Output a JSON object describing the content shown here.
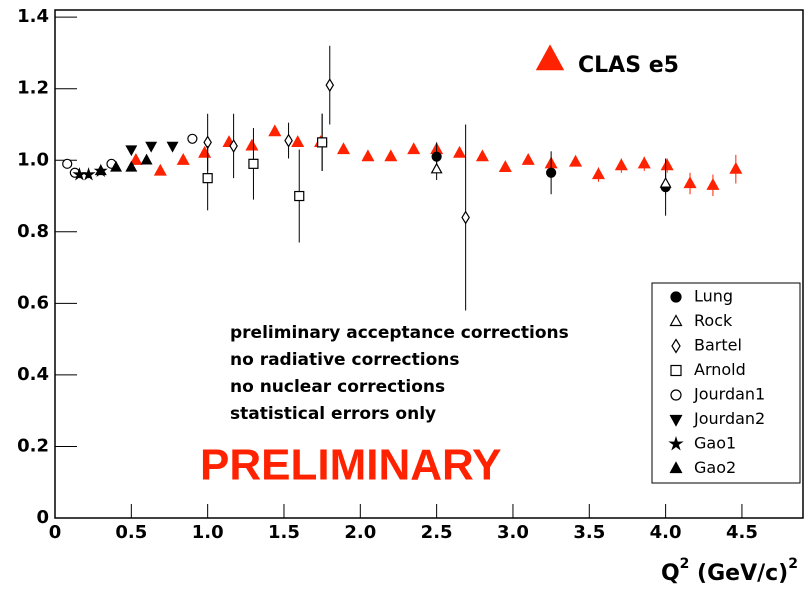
{
  "chart_data": {
    "type": "scatter",
    "xlim": [
      0,
      4.9
    ],
    "ylim": [
      0,
      1.42
    ],
    "xticks": [
      0,
      0.5,
      {
        "value": 1,
        "label": "1.0"
      },
      1.5,
      {
        "value": 2,
        "label": "2.0"
      },
      2.5,
      {
        "value": 3,
        "label": "3.0"
      },
      3.5,
      {
        "value": 4,
        "label": "4.0"
      },
      4.5
    ],
    "yticks": [
      0,
      0.2,
      0.4,
      0.6,
      0.8,
      {
        "value": 1,
        "label": "1.0"
      },
      1.2,
      1.4
    ],
    "x_label": [
      "Q",
      "2",
      " (GeV/c)",
      "2"
    ],
    "notes": [
      "preliminary acceptance corrections",
      "no radiative corrections",
      "no nuclear corrections",
      "statistical errors only"
    ],
    "stamp": "PRELIMINARY",
    "series": [
      {
        "name": "CLAS e5",
        "marker": "triangle-up-filled",
        "color": "#ff2200",
        "x": [
          0.53,
          0.69,
          0.84,
          0.98,
          1.14,
          1.29,
          1.44,
          1.59,
          1.74,
          1.89,
          2.05,
          2.2,
          2.35,
          2.5,
          2.65,
          2.8,
          2.95,
          3.1,
          3.25,
          3.41,
          3.56,
          3.71,
          3.86,
          4.01,
          4.16,
          4.31,
          4.46
        ],
        "values": [
          1.0,
          0.97,
          1.0,
          1.02,
          1.05,
          1.04,
          1.08,
          1.05,
          1.05,
          1.03,
          1.01,
          1.01,
          1.03,
          1.03,
          1.02,
          1.01,
          0.98,
          1.0,
          0.99,
          0.995,
          0.96,
          0.985,
          0.99,
          0.985,
          0.935,
          0.93,
          0.975
        ],
        "errors": [
          0.01,
          0.01,
          0.01,
          0.01,
          0.01,
          0.01,
          0.01,
          0.01,
          0.01,
          0.01,
          0.01,
          0.01,
          0.01,
          0.01,
          0.01,
          0.01,
          0.01,
          0.01,
          0.02,
          0.01,
          0.02,
          0.02,
          0.02,
          0.02,
          0.03,
          0.03,
          0.04
        ]
      },
      {
        "name": "Lung",
        "marker": "circle-filled",
        "color": "#000000",
        "x": [
          1.75,
          2.5,
          3.25,
          4.0
        ],
        "values": [
          1.05,
          1.01,
          0.965,
          0.925
        ],
        "errors": [
          0.08,
          0.04,
          0.06,
          0.08
        ]
      },
      {
        "name": "Rock",
        "marker": "triangle-up-open",
        "color": "#000000",
        "x": [
          2.5,
          4.0
        ],
        "values": [
          0.975,
          0.935
        ],
        "errors": [
          0.03,
          0.03
        ]
      },
      {
        "name": "Bartel",
        "marker": "diamond-open",
        "color": "#000000",
        "x": [
          1.0,
          1.17,
          1.53,
          1.8,
          2.69
        ],
        "values": [
          1.05,
          1.04,
          1.055,
          1.21,
          0.84
        ],
        "errors": [
          0.08,
          0.09,
          0.05,
          0.11,
          0.26
        ]
      },
      {
        "name": "Arnold",
        "marker": "square-open",
        "color": "#000000",
        "x": [
          1.0,
          1.3,
          1.6,
          1.75
        ],
        "values": [
          0.95,
          0.99,
          0.9,
          1.05
        ],
        "errors": [
          0.09,
          0.1,
          0.13,
          0.08
        ]
      },
      {
        "name": "Jourdan1",
        "marker": "circle-open",
        "color": "#000000",
        "x": [
          0.08,
          0.13,
          0.37,
          0.9
        ],
        "values": [
          0.99,
          0.965,
          0.99,
          1.06
        ],
        "errors": [
          0.01,
          0.01,
          0.01,
          0.01
        ]
      },
      {
        "name": "Jourdan2",
        "marker": "triangle-down-filled",
        "color": "#000000",
        "x": [
          0.5,
          0.63,
          0.77
        ],
        "values": [
          1.03,
          1.04,
          1.04
        ],
        "errors": [
          0.01,
          0.01,
          0.01
        ]
      },
      {
        "name": "Gao1",
        "marker": "star",
        "color": "#000000",
        "x": [
          0.16,
          0.22,
          0.3
        ],
        "values": [
          0.96,
          0.96,
          0.97
        ],
        "errors": [
          0.01,
          0.01,
          0.01
        ]
      },
      {
        "name": "Gao2",
        "marker": "triangle-up-filled",
        "color": "#000000",
        "x": [
          0.3,
          0.4,
          0.5,
          0.6
        ],
        "values": [
          0.97,
          0.98,
          0.98,
          1.0
        ],
        "errors": [
          0.01,
          0.01,
          0.01,
          0.01
        ]
      }
    ]
  }
}
